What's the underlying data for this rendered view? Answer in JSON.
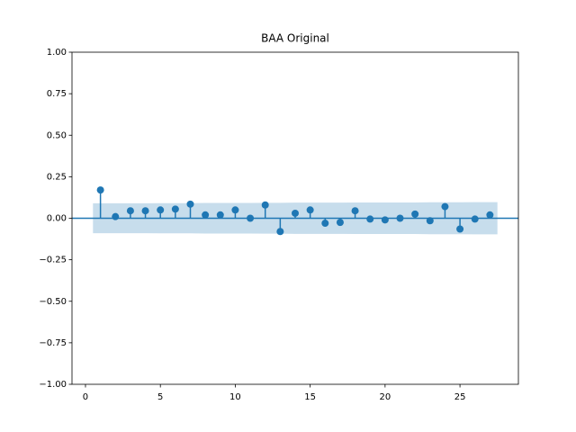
{
  "chart_data": {
    "type": "stem",
    "title": "BAA Original",
    "x": [
      1,
      2,
      3,
      4,
      5,
      6,
      7,
      8,
      9,
      10,
      11,
      12,
      13,
      14,
      15,
      16,
      17,
      18,
      19,
      20,
      21,
      22,
      23,
      24,
      25,
      26,
      27
    ],
    "values": [
      0.17,
      0.01,
      0.045,
      0.045,
      0.05,
      0.055,
      0.085,
      0.02,
      0.02,
      0.05,
      0.0,
      0.08,
      -0.08,
      0.03,
      0.05,
      -0.03,
      -0.025,
      0.045,
      -0.005,
      -0.01,
      0.0,
      0.025,
      -0.015,
      0.07,
      -0.065,
      -0.005,
      0.02
    ],
    "confidence_band": [
      0.09,
      0.09,
      0.09,
      0.09,
      0.091,
      0.091,
      0.091,
      0.092,
      0.092,
      0.092,
      0.092,
      0.093,
      0.093,
      0.094,
      0.094,
      0.094,
      0.094,
      0.095,
      0.095,
      0.095,
      0.095,
      0.095,
      0.096,
      0.096,
      0.096,
      0.097,
      0.097
    ],
    "color": "#1f77b4",
    "xlim": [
      -0.9,
      28.9
    ],
    "xticks": [
      0,
      5,
      10,
      15,
      20,
      25
    ],
    "ylim": [
      -1,
      1
    ],
    "yticks": [
      {
        "value": -1,
        "label": "−1.00"
      },
      {
        "value": -0.75,
        "label": "−0.75"
      },
      {
        "value": -0.5,
        "label": "−0.50"
      },
      {
        "value": -0.25,
        "label": "−0.25"
      },
      {
        "value": 0,
        "label": "0.00"
      },
      {
        "value": 0.25,
        "label": "0.25"
      },
      {
        "value": 0.5,
        "label": "0.50"
      },
      {
        "value": 0.75,
        "label": "0.75"
      },
      {
        "value": 1,
        "label": "1.00"
      }
    ]
  }
}
